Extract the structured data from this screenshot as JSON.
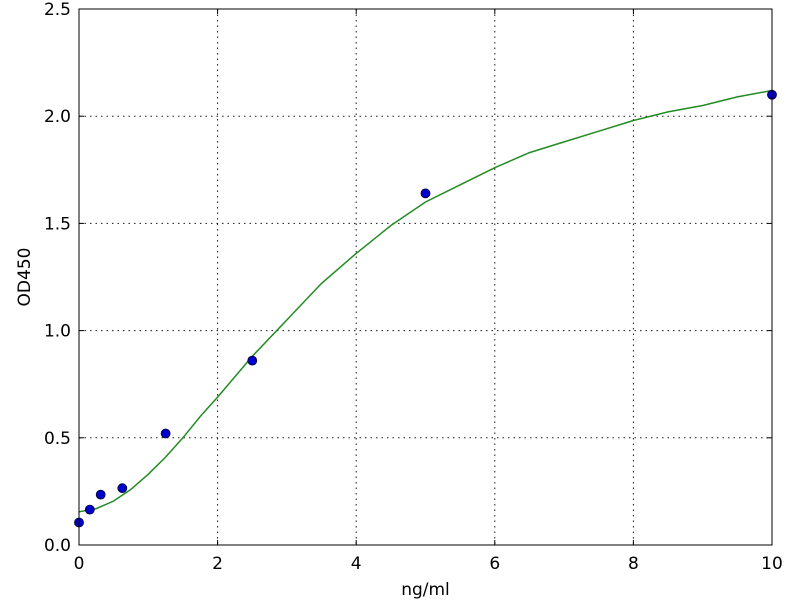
{
  "chart_data": {
    "type": "scatter",
    "title": "",
    "xlabel": "ng/ml",
    "ylabel": "OD450",
    "xlim": [
      0,
      10
    ],
    "ylim": [
      0,
      2.5
    ],
    "x_ticks": [
      0,
      2,
      4,
      6,
      8,
      10
    ],
    "x_tick_labels": [
      "0",
      "2",
      "4",
      "6",
      "8",
      "10"
    ],
    "y_ticks": [
      0.0,
      0.5,
      1.0,
      1.5,
      2.0,
      2.5
    ],
    "y_tick_labels": [
      "0.0",
      "0.5",
      "1.0",
      "1.5",
      "2.0",
      "2.5"
    ],
    "grid": true,
    "legend": "none",
    "series": [
      {
        "kind": "points",
        "color": "#0000cc",
        "x": [
          0,
          0.156,
          0.313,
          0.625,
          1.25,
          2.5,
          5,
          10
        ],
        "y": [
          0.105,
          0.165,
          0.235,
          0.265,
          0.52,
          0.86,
          1.64,
          2.1
        ]
      },
      {
        "kind": "fit-curve",
        "color": "#228B22",
        "x": [
          0,
          0.25,
          0.5,
          0.75,
          1,
          1.25,
          1.5,
          1.75,
          2,
          2.5,
          3,
          3.5,
          4,
          4.5,
          5,
          5.5,
          6,
          6.5,
          7,
          7.5,
          8,
          8.5,
          9,
          9.5,
          10
        ],
        "y": [
          0.155,
          0.17,
          0.205,
          0.26,
          0.33,
          0.41,
          0.5,
          0.6,
          0.69,
          0.88,
          1.05,
          1.22,
          1.36,
          1.49,
          1.6,
          1.68,
          1.76,
          1.83,
          1.88,
          1.93,
          1.98,
          2.02,
          2.05,
          2.09,
          2.12
        ]
      }
    ]
  }
}
